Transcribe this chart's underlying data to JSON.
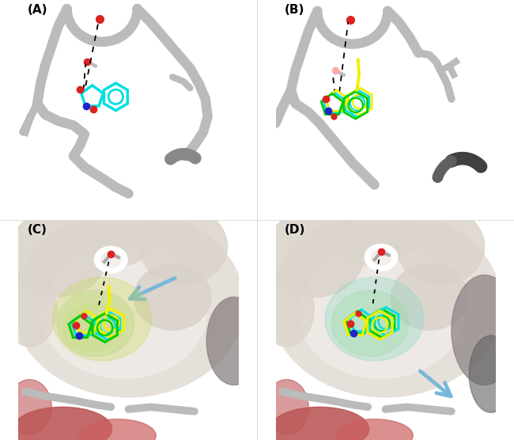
{
  "figure_width": 6.5,
  "figure_height": 5.56,
  "dpi": 100,
  "background_color": "#ffffff",
  "panel_labels": [
    "(A)",
    "(B)",
    "(C)",
    "(D)"
  ],
  "panel_label_fontsize": 11,
  "panel_label_color": "#000000",
  "panel_label_weight": "bold",
  "ribbon_color": "#bbbbbb",
  "ribbon_lw": 9,
  "ribbon_dark": "#888888",
  "color_cyan": "#00e0e0",
  "color_yellow": "#f0f000",
  "color_green": "#00cc00",
  "color_red": "#dd2222",
  "color_blue": "#2222cc",
  "color_arrow": "#7ab8d8",
  "surface_base": "#e6e0db",
  "surface_light": "#f2eee8",
  "surface_bump": "#dbd4cc",
  "surface_red1": "#b85050",
  "surface_red2": "#cc6060",
  "surface_dark": "#808080"
}
